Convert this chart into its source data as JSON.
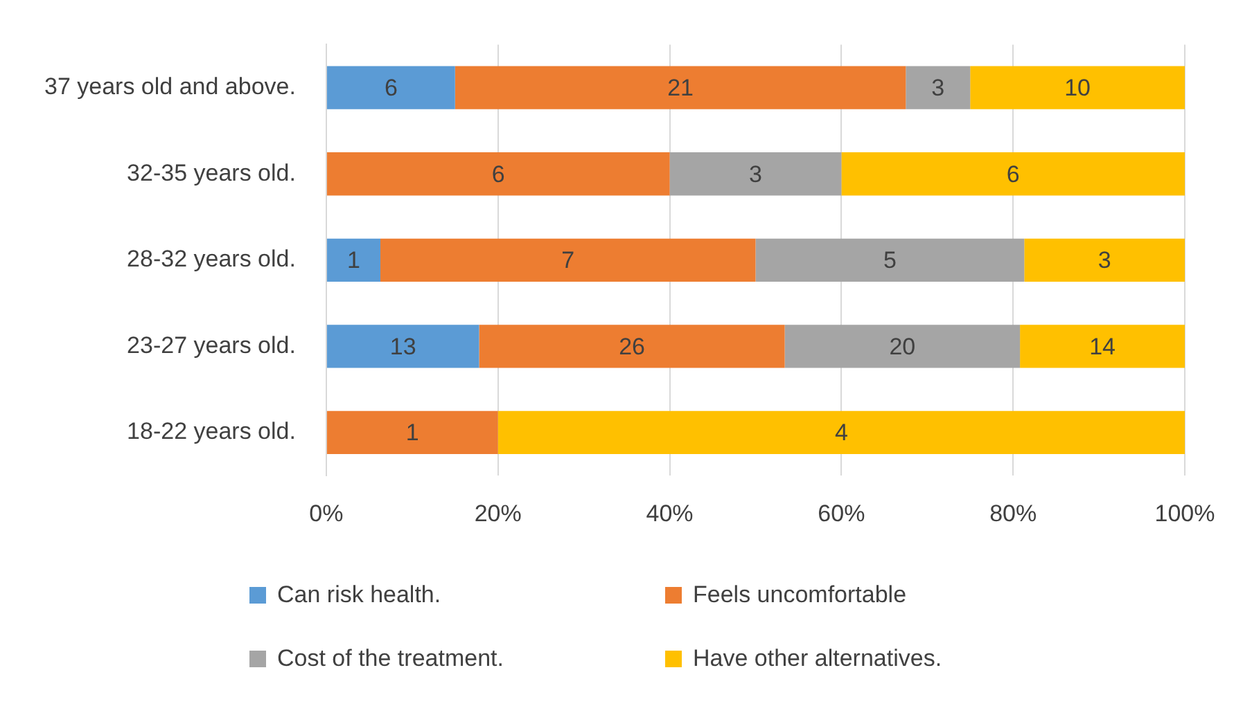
{
  "chart_data": {
    "type": "bar",
    "orientation": "horizontal",
    "stacked": true,
    "categories": [
      "37 years old and above.",
      "32-35 years old.",
      "28-32 years old.",
      "23-27 years old.",
      "18-22 years old."
    ],
    "series": [
      {
        "name": "Can risk health.",
        "color": "#5b9bd5",
        "values": [
          15,
          null,
          6.3,
          17.8,
          null
        ]
      },
      {
        "name": "Feels uncomfortable",
        "color": "#ed7d31",
        "values": [
          52.5,
          40,
          43.7,
          35.6,
          20
        ]
      },
      {
        "name": "Cost of the treatment.",
        "color": "#a5a5a5",
        "values": [
          7.5,
          20,
          31.3,
          27.4,
          null
        ]
      },
      {
        "name": "Have other alternatives.",
        "color": "#ffc000",
        "values": [
          25,
          40,
          18.7,
          19.2,
          80
        ]
      }
    ],
    "annotations": [
      "6",
      "21",
      "3",
      "10",
      "6",
      "3",
      "6",
      "1",
      "7",
      "5",
      "3",
      "13",
      "26",
      "20",
      "14",
      "1",
      "4"
    ],
    "xlim": [
      0,
      100
    ],
    "xticks": [
      {
        "value": 0,
        "label": "0%"
      },
      {
        "value": 20,
        "label": "20%"
      },
      {
        "value": 40,
        "label": "40%"
      },
      {
        "value": 60,
        "label": "60%"
      },
      {
        "value": 80,
        "label": "80%"
      },
      {
        "value": 100,
        "label": "100%"
      }
    ],
    "grid": "x",
    "legend": "bottom"
  }
}
